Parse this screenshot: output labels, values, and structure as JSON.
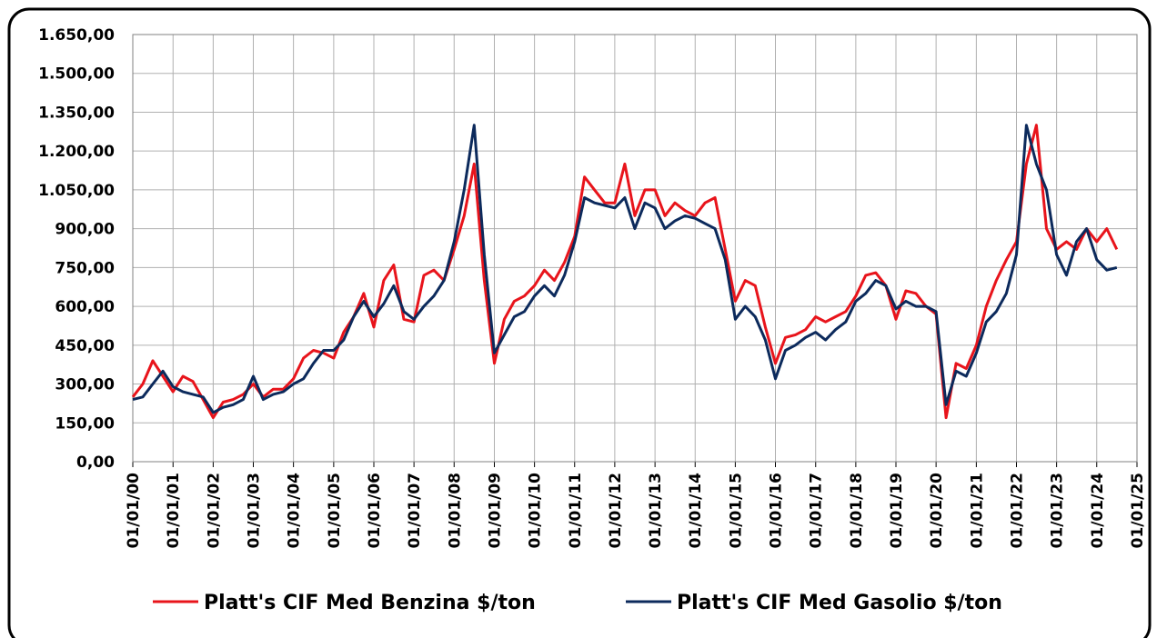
{
  "chart_data": {
    "type": "line",
    "x": [
      "01/01/00",
      "01/04/00",
      "01/07/00",
      "01/10/00",
      "01/01/01",
      "01/04/01",
      "01/07/01",
      "01/10/01",
      "01/01/02",
      "01/04/02",
      "01/07/02",
      "01/10/02",
      "01/01/03",
      "01/04/03",
      "01/07/03",
      "01/10/03",
      "01/01/04",
      "01/04/04",
      "01/07/04",
      "01/10/04",
      "01/01/05",
      "01/04/05",
      "01/07/05",
      "01/10/05",
      "01/01/06",
      "01/04/06",
      "01/07/06",
      "01/10/06",
      "01/01/07",
      "01/04/07",
      "01/07/07",
      "01/10/07",
      "01/01/08",
      "01/04/08",
      "01/07/08",
      "01/10/08",
      "01/01/09",
      "01/04/09",
      "01/07/09",
      "01/10/09",
      "01/01/10",
      "01/04/10",
      "01/07/10",
      "01/10/10",
      "01/01/11",
      "01/04/11",
      "01/07/11",
      "01/10/11",
      "01/01/12",
      "01/04/12",
      "01/07/12",
      "01/10/12",
      "01/01/13",
      "01/04/13",
      "01/07/13",
      "01/10/13",
      "01/01/14",
      "01/04/14",
      "01/07/14",
      "01/10/14",
      "01/01/15",
      "01/04/15",
      "01/07/15",
      "01/10/15",
      "01/01/16",
      "01/04/16",
      "01/07/16",
      "01/10/16",
      "01/01/17",
      "01/04/17",
      "01/07/17",
      "01/10/17",
      "01/01/18",
      "01/04/18",
      "01/07/18",
      "01/10/18",
      "01/01/19",
      "01/04/19",
      "01/07/19",
      "01/10/19",
      "01/01/20",
      "01/04/20",
      "01/07/20",
      "01/10/20",
      "01/01/21",
      "01/04/21",
      "01/07/21",
      "01/10/21",
      "01/01/22",
      "01/04/22",
      "01/07/22",
      "01/10/22",
      "01/01/23",
      "01/04/23",
      "01/07/23",
      "01/10/23",
      "01/01/24",
      "01/04/24",
      "01/07/24"
    ],
    "series": [
      {
        "name": "Platt's CIF Med Benzina $/ton",
        "color": "#e8141b",
        "values": [
          250,
          300,
          390,
          330,
          270,
          330,
          310,
          240,
          170,
          230,
          240,
          260,
          300,
          250,
          280,
          280,
          320,
          400,
          430,
          420,
          400,
          500,
          560,
          650,
          520,
          700,
          760,
          550,
          540,
          720,
          740,
          700,
          820,
          950,
          1150,
          700,
          380,
          550,
          620,
          640,
          680,
          740,
          700,
          770,
          870,
          1100,
          1050,
          1000,
          1000,
          1150,
          950,
          1050,
          1050,
          950,
          1000,
          970,
          950,
          1000,
          1020,
          820,
          620,
          700,
          680,
          520,
          380,
          480,
          490,
          510,
          560,
          540,
          560,
          580,
          640,
          720,
          730,
          680,
          550,
          660,
          650,
          600,
          570,
          170,
          380,
          360,
          450,
          600,
          700,
          780,
          850,
          1150,
          1300,
          900,
          820,
          850,
          820,
          900,
          850,
          900,
          820
        ]
      },
      {
        "name": "Platt's CIF Med Gasolio $/ton",
        "color": "#0c2a5c",
        "values": [
          240,
          250,
          300,
          350,
          290,
          270,
          260,
          250,
          190,
          210,
          220,
          240,
          330,
          240,
          260,
          270,
          300,
          320,
          380,
          430,
          430,
          470,
          560,
          620,
          560,
          610,
          680,
          580,
          550,
          600,
          640,
          700,
          850,
          1050,
          1300,
          800,
          420,
          490,
          560,
          580,
          640,
          680,
          640,
          720,
          850,
          1020,
          1000,
          990,
          980,
          1020,
          900,
          1000,
          980,
          900,
          930,
          950,
          940,
          920,
          900,
          780,
          550,
          600,
          560,
          470,
          320,
          430,
          450,
          480,
          500,
          470,
          510,
          540,
          620,
          650,
          700,
          680,
          590,
          620,
          600,
          600,
          580,
          220,
          350,
          330,
          420,
          540,
          580,
          650,
          800,
          1300,
          1150,
          1050,
          800,
          720,
          850,
          900,
          780,
          740,
          750
        ]
      }
    ],
    "xlim": [
      "01/01/00",
      "01/01/25"
    ],
    "xticks": [
      "01/01/00",
      "01/01/01",
      "01/01/02",
      "01/01/03",
      "01/01/04",
      "01/01/05",
      "01/01/06",
      "01/01/07",
      "01/01/08",
      "01/01/09",
      "01/01/10",
      "01/01/11",
      "01/01/12",
      "01/01/13",
      "01/01/14",
      "01/01/15",
      "01/01/16",
      "01/01/17",
      "01/01/18",
      "01/01/19",
      "01/01/20",
      "01/01/21",
      "01/01/22",
      "01/01/23",
      "01/01/24",
      "01/01/25"
    ],
    "ylim": [
      0,
      1650
    ],
    "yticks": [
      {
        "value": 0,
        "label": "0,00"
      },
      {
        "value": 150,
        "label": "150,00"
      },
      {
        "value": 300,
        "label": "300,00"
      },
      {
        "value": 450,
        "label": "450,00"
      },
      {
        "value": 600,
        "label": "600,00"
      },
      {
        "value": 750,
        "label": "750,00"
      },
      {
        "value": 900,
        "label": "900,00"
      },
      {
        "value": 1050,
        "label": "1.050,00"
      },
      {
        "value": 1200,
        "label": "1.200,00"
      },
      {
        "value": 1350,
        "label": "1.350,00"
      },
      {
        "value": 1500,
        "label": "1.500,00"
      },
      {
        "value": 1650,
        "label": "1.650,00"
      }
    ],
    "grid": true
  }
}
